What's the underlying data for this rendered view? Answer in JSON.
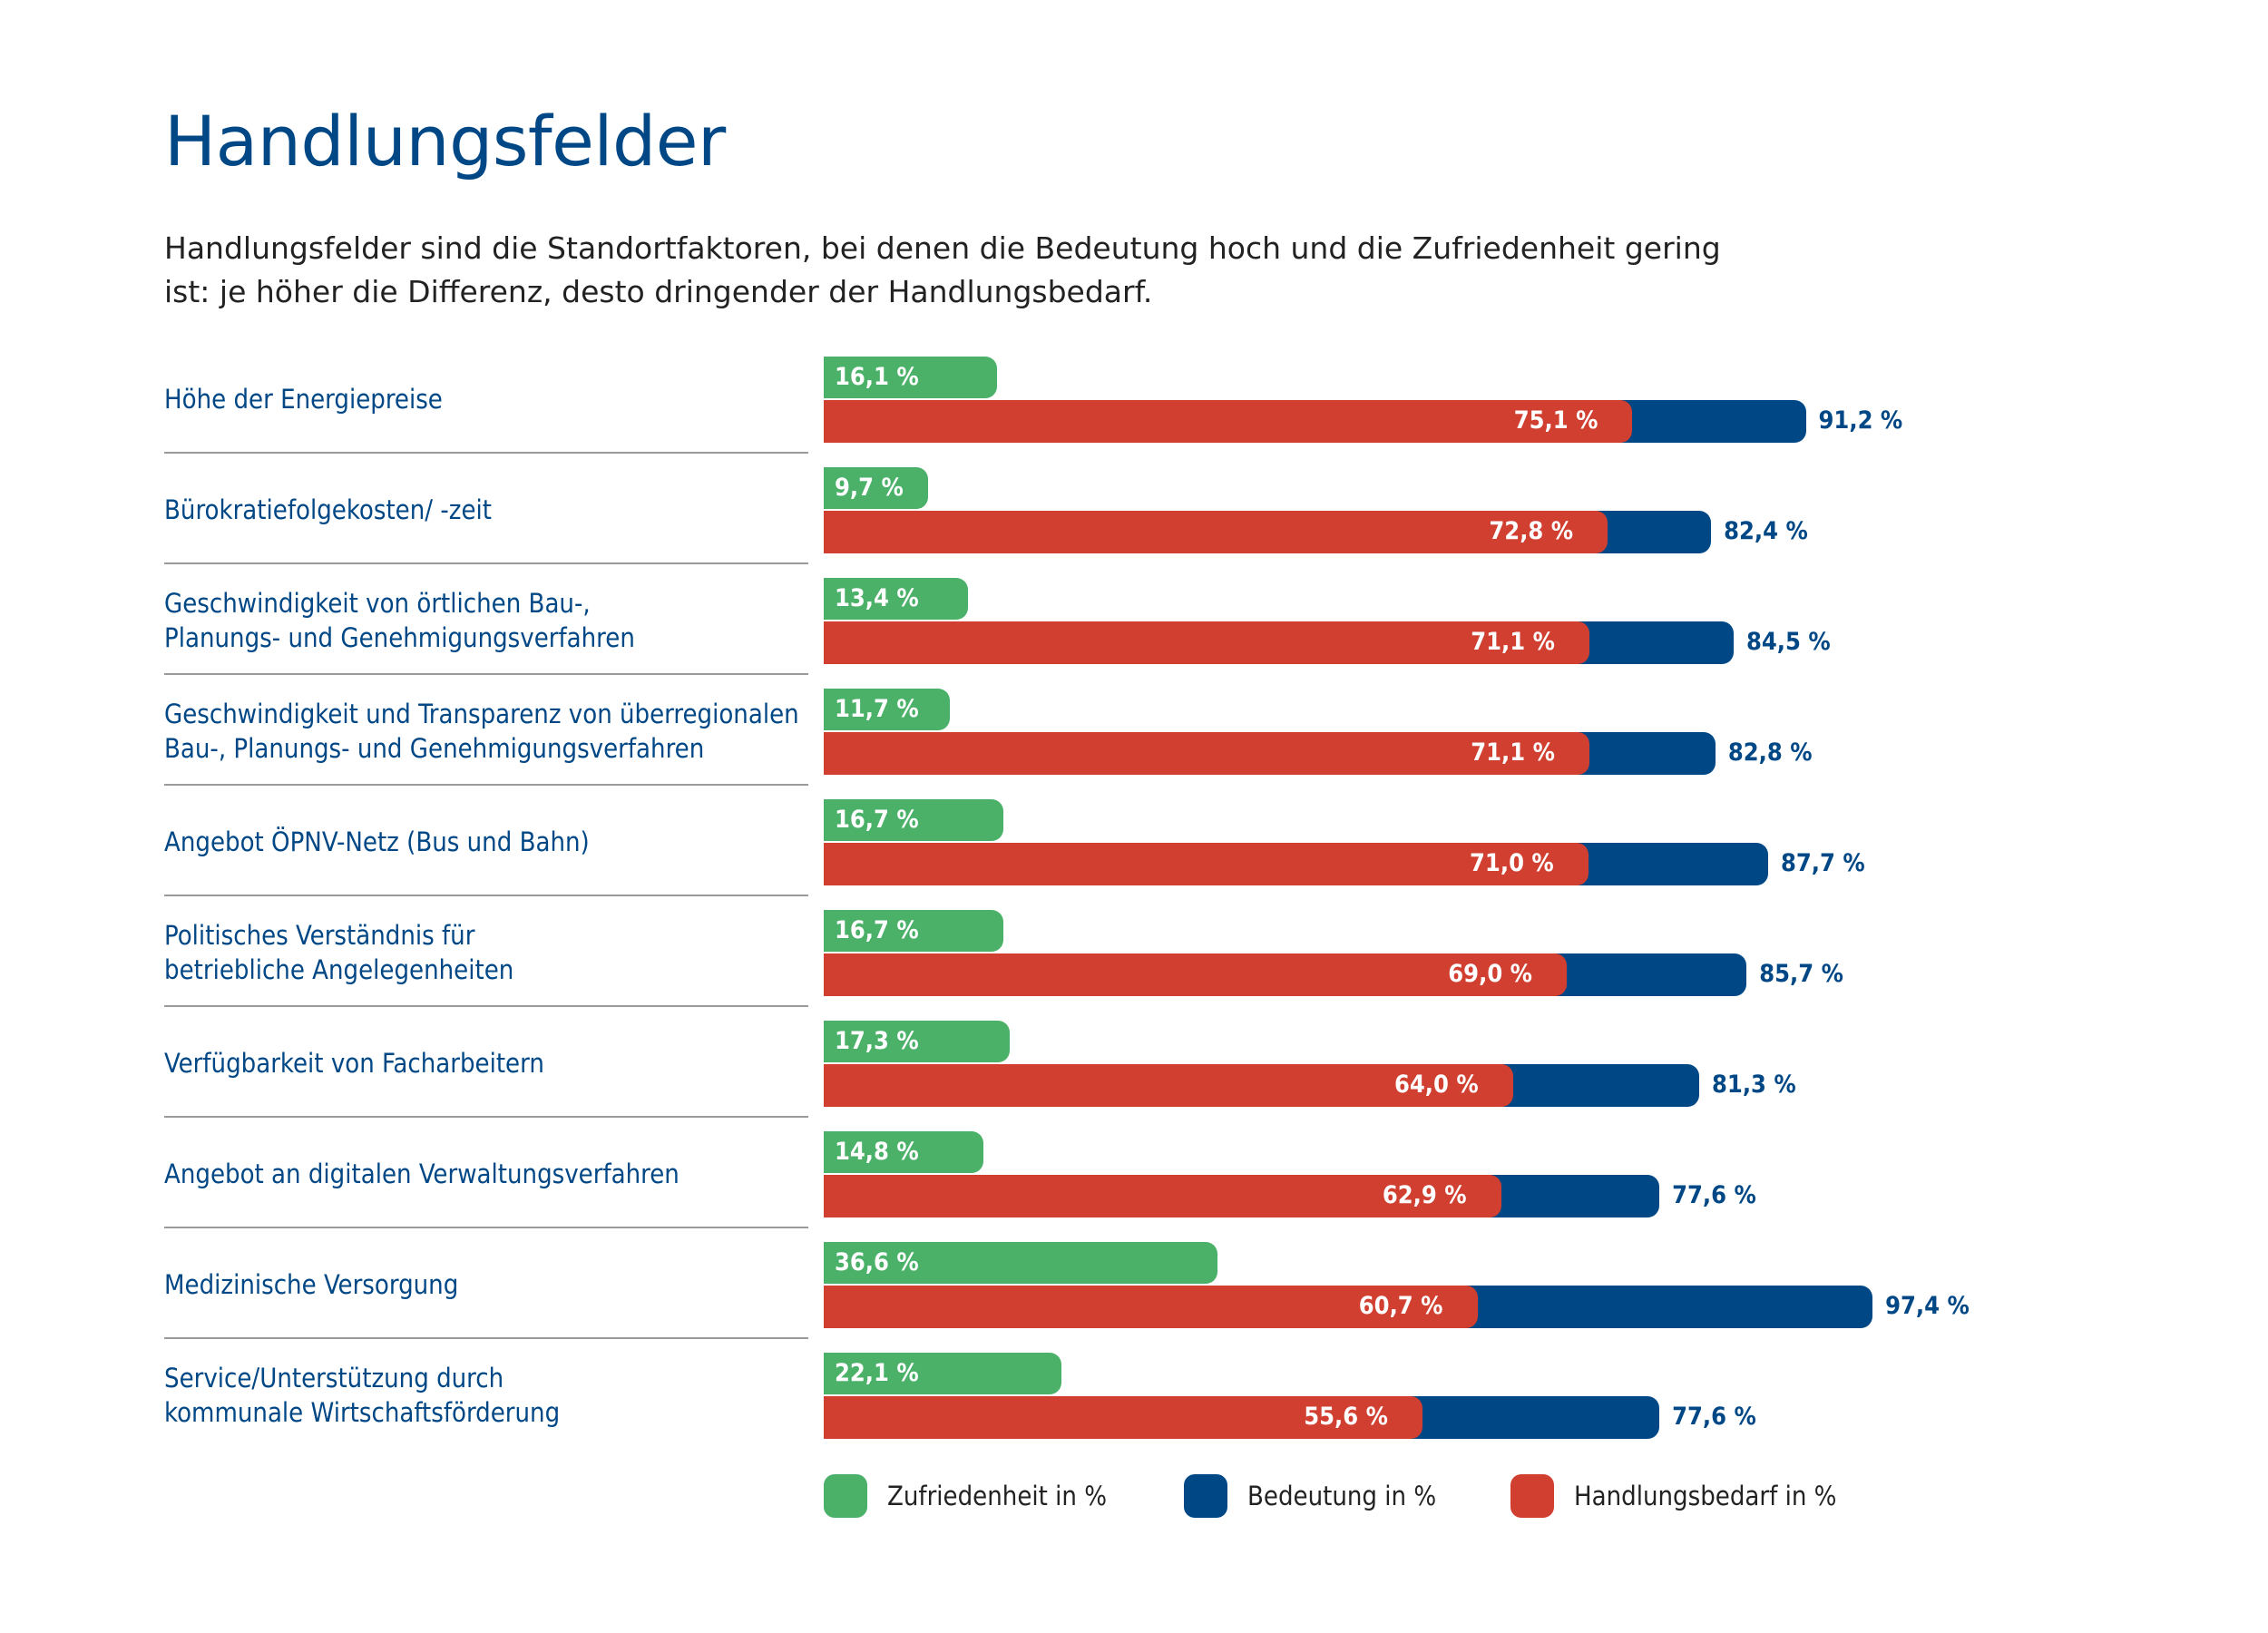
{
  "header": {
    "title": "Handlungsfelder",
    "subtitle": "Handlungsfelder sind die Standortfaktoren, bei denen die Bedeutung hoch und die Zufriedenheit gering ist: je höher die Differenz, desto dringender der Handlungsbedarf."
  },
  "colors": {
    "zufriedenheit": "#4bb169",
    "bedeutung": "#004786",
    "handlungsbedarf": "#d03f30",
    "text_blue": "#004786"
  },
  "chart_data": {
    "type": "bar",
    "orientation": "horizontal",
    "title": "Handlungsfelder",
    "unit": "%",
    "categories": [
      "Höhe der Energiepreise",
      "Bürokratiefolgekosten/ -zeit",
      "Geschwindigkeit von örtlichen Bau-, Planungs- und Genehmigungsverfahren",
      "Geschwindigkeit und Transparenz von überregionalen Bau-, Planungs- und Genehmigungsverfahren",
      "Angebot ÖPNV-Netz (Bus und Bahn)",
      "Politisches Verständnis für betriebliche Angelegenheiten",
      "Verfügbarkeit von Facharbeitern",
      "Angebot an digitalen Verwaltungsverfahren",
      "Medizinische Versorgung",
      "Service/Unterstützung durch kommunale Wirtschaftsförderung"
    ],
    "series": [
      {
        "name": "Zufriedenheit in %",
        "values": [
          16.1,
          9.7,
          13.4,
          11.7,
          16.7,
          16.7,
          17.3,
          14.8,
          36.6,
          22.1
        ],
        "labels": [
          "16,1 %",
          "9,7 %",
          "13,4 %",
          "11,7 %",
          "16,7 %",
          "16,7 %",
          "17,3 %",
          "14,8 %",
          "36,6 %",
          "22,1 %"
        ]
      },
      {
        "name": "Bedeutung in %",
        "values": [
          91.2,
          82.4,
          84.5,
          82.8,
          87.7,
          85.7,
          81.3,
          77.6,
          97.4,
          77.6
        ],
        "labels": [
          "91,2 %",
          "82,4 %",
          "84,5 %",
          "82,8 %",
          "87,7 %",
          "85,7 %",
          "81,3 %",
          "77,6 %",
          "97,4 %",
          "77,6 %"
        ]
      },
      {
        "name": "Handlungsbedarf in %",
        "values": [
          75.1,
          72.8,
          71.1,
          71.1,
          71.0,
          69.0,
          64.0,
          62.9,
          60.7,
          55.6
        ],
        "labels": [
          "75,1 %",
          "72,8 %",
          "71,1 %",
          "71,1 %",
          "71,0 %",
          "69,0 %",
          "64,0 %",
          "62,9 %",
          "60,7 %",
          "55,6 %"
        ]
      }
    ],
    "row_labels": [
      [
        "Höhe der Energiepreise"
      ],
      [
        "Bürokratiefolgekosten/ -zeit"
      ],
      [
        "Geschwindigkeit von örtlichen Bau-,",
        "Planungs- und Genehmigungsverfahren"
      ],
      [
        "Geschwindigkeit und Transparenz von überregionalen",
        "Bau-, Planungs- und Genehmigungsverfahren"
      ],
      [
        "Angebot ÖPNV-Netz (Bus und Bahn)"
      ],
      [
        "Politisches Verständnis für",
        "betriebliche Angelegenheiten"
      ],
      [
        "Verfügbarkeit von Facharbeitern"
      ],
      [
        "Angebot an digitalen Verwaltungsverfahren"
      ],
      [
        "Medizinische Versorgung"
      ],
      [
        "Service/Unterstützung durch",
        "kommunale Wirtschaftsförderung"
      ]
    ],
    "xlim": [
      0,
      100
    ],
    "legend": {
      "placement": "bottom",
      "items": [
        "Zufriedenheit in %",
        "Bedeutung in %",
        "Handlungsbedarf in %"
      ]
    }
  }
}
